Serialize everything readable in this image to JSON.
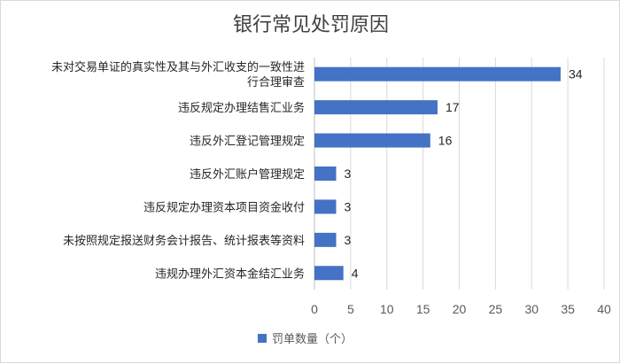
{
  "chart_data": {
    "type": "bar",
    "orientation": "horizontal",
    "title": "银行常见处罚原因",
    "categories": [
      [
        "未对交易单证的真实性及其与外汇收支的一致性进",
        "行合理审查"
      ],
      [
        "违反规定办理结售汇业务"
      ],
      [
        "违反外汇登记管理规定"
      ],
      [
        "违反外汇账户管理规定"
      ],
      [
        "违反规定办理资本项目资金收付"
      ],
      [
        "未按照规定报送财务会计报告、统计报表等资料"
      ],
      [
        "违规办理外汇资本金结汇业务"
      ]
    ],
    "series": [
      {
        "name": "罚单数量（个）",
        "values": [
          34,
          17,
          16,
          3,
          3,
          3,
          4
        ]
      }
    ],
    "xlim": [
      0,
      40
    ],
    "xticks": [
      0,
      5,
      10,
      15,
      20,
      25,
      30,
      35,
      40
    ],
    "grid": true,
    "legend_position": "bottom",
    "colors": {
      "bar": "#4472c4",
      "grid": "#d9d9d9"
    }
  }
}
